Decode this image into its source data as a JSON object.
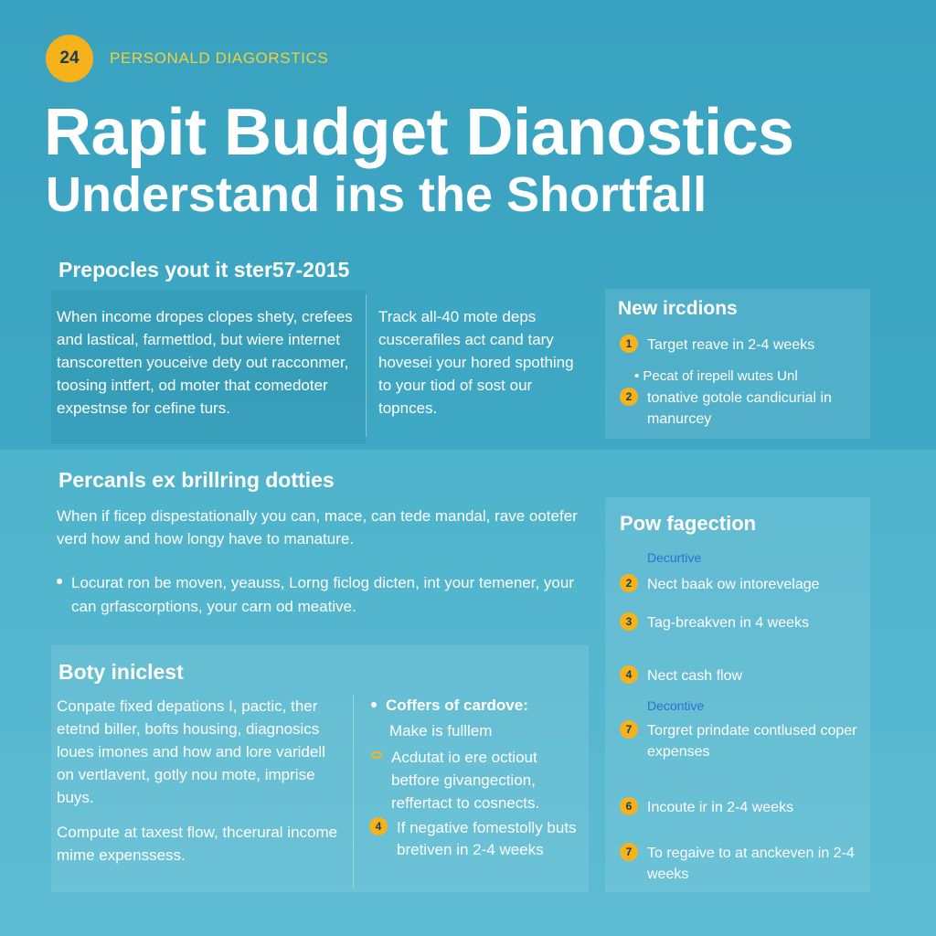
{
  "header": {
    "badge": "24",
    "eyebrow": "PERSONALD DIAGORSTICS",
    "title_line1": "Rapit Budget Dianostics",
    "title_line2": "Understand ins the Shortfall"
  },
  "section_prepocles": {
    "heading": "Prepocles yout it ster57-2015",
    "col1": "When income dropes clopes shety, crefees and lastical, farmettlod, but wiere internet tanscoretten youceive dety out racconmer, toosing intfert, od moter that comedoter expestnse for cefine turs.",
    "col2": "Track all-40 mote deps cuscerafiles act cand tary hovesei your hored spothing to your tiod of sost our topnces."
  },
  "new_ircdions": {
    "heading": "New ircdions",
    "item1_num": "1",
    "item1": "Target reave in 2-4 weeks",
    "bullet": "• Pecat of irepell wutes Unl",
    "item2_num": "2",
    "item2": "tonative gotole candicurial in manurcey"
  },
  "section_percanls": {
    "heading": "Percanls ex brillring dotties",
    "para": "When if ficep dispestationally you can, mace, can tede mandal, rave ootefer verd how and how longy have to manature.",
    "bullet": "Locurat ron be moven, yeauss, Lorng ficlog dicten, int your temener, your can grfascorptions, your carn od meative."
  },
  "section_boty": {
    "heading": "Boty iniclest",
    "para1": "Conpate fixed depations I, pactic, ther etetnd biller, bofts housing, diagnosics loues imones and how and lore varidell on vertlavent, gotly nou mote, imprise buys.",
    "para2": "Compute at taxest flow, thcerural income mime expenssess.",
    "right_item1_title": "Coffers of cardove:",
    "right_item1_sub": "Make is fulllem",
    "right_item2": "Acdutat io ere octiout betfore givangection, reffertact to cosnects.",
    "right_item3_num": "4",
    "right_item3": "If negative fomestolly buts bretiven in 2-4 weeks"
  },
  "pow_fagection": {
    "heading": "Pow fagection",
    "sublabel1": "Decurtive",
    "items": [
      {
        "num": "2",
        "text": "Nect baak ow intorevelage"
      },
      {
        "num": "3",
        "text": "Tag-breakven in 4 weeks"
      },
      {
        "num": "4",
        "text": "Nect cash flow"
      }
    ],
    "sublabel2": "Decontive",
    "items2": [
      {
        "num": "7",
        "text": "Torgret prindate contlused coper expenses"
      },
      {
        "num": "6",
        "text": "Incoute ir in 2-4 weeks"
      },
      {
        "num": "7",
        "text": "To regaive to at anckeven in 2-4 weeks"
      }
    ]
  },
  "colors": {
    "accent": "#f6b21b",
    "eyebrow": "#f2d23a",
    "background": "#45abc6",
    "sublabel": "#2f6fd1"
  }
}
